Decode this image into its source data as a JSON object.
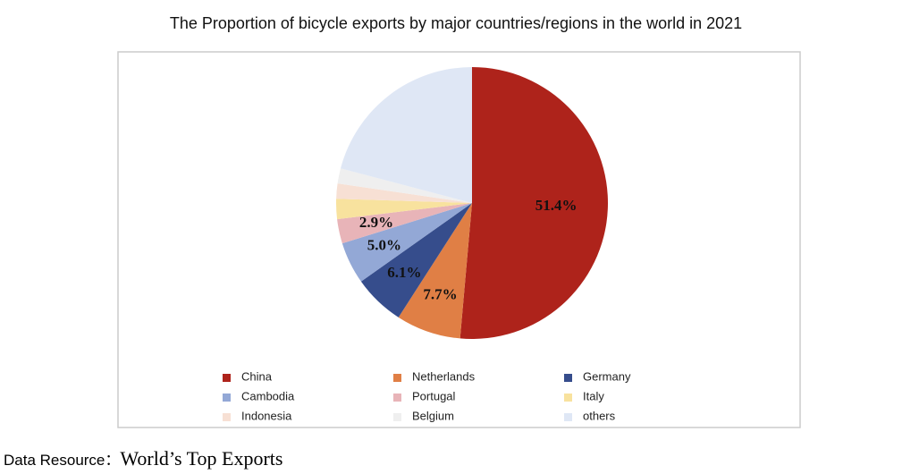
{
  "chart_data": {
    "type": "pie",
    "title": "The Proportion of bicycle exports by major countries/regions in the world in 2021",
    "categories": [
      "China",
      "Netherlands",
      "Germany",
      "Cambodia",
      "Portugal",
      "Italy",
      "Indonesia",
      "Belgium",
      "others"
    ],
    "values": [
      51.4,
      7.7,
      6.1,
      5.0,
      2.9,
      2.4,
      1.8,
      1.8,
      20.9
    ],
    "value_labels": [
      "51.4%",
      "7.7%",
      "6.1%",
      "5.0%",
      "2.9%",
      null,
      null,
      null,
      null
    ],
    "colors": [
      "#ae231b",
      "#e07f45",
      "#364d8c",
      "#93a8d6",
      "#e8b4b8",
      "#f8e29e",
      "#f7e0d4",
      "#efefef",
      "#dfe7f5"
    ]
  },
  "source": {
    "label": "Data Resource：",
    "text": "World’s Top Exports"
  }
}
